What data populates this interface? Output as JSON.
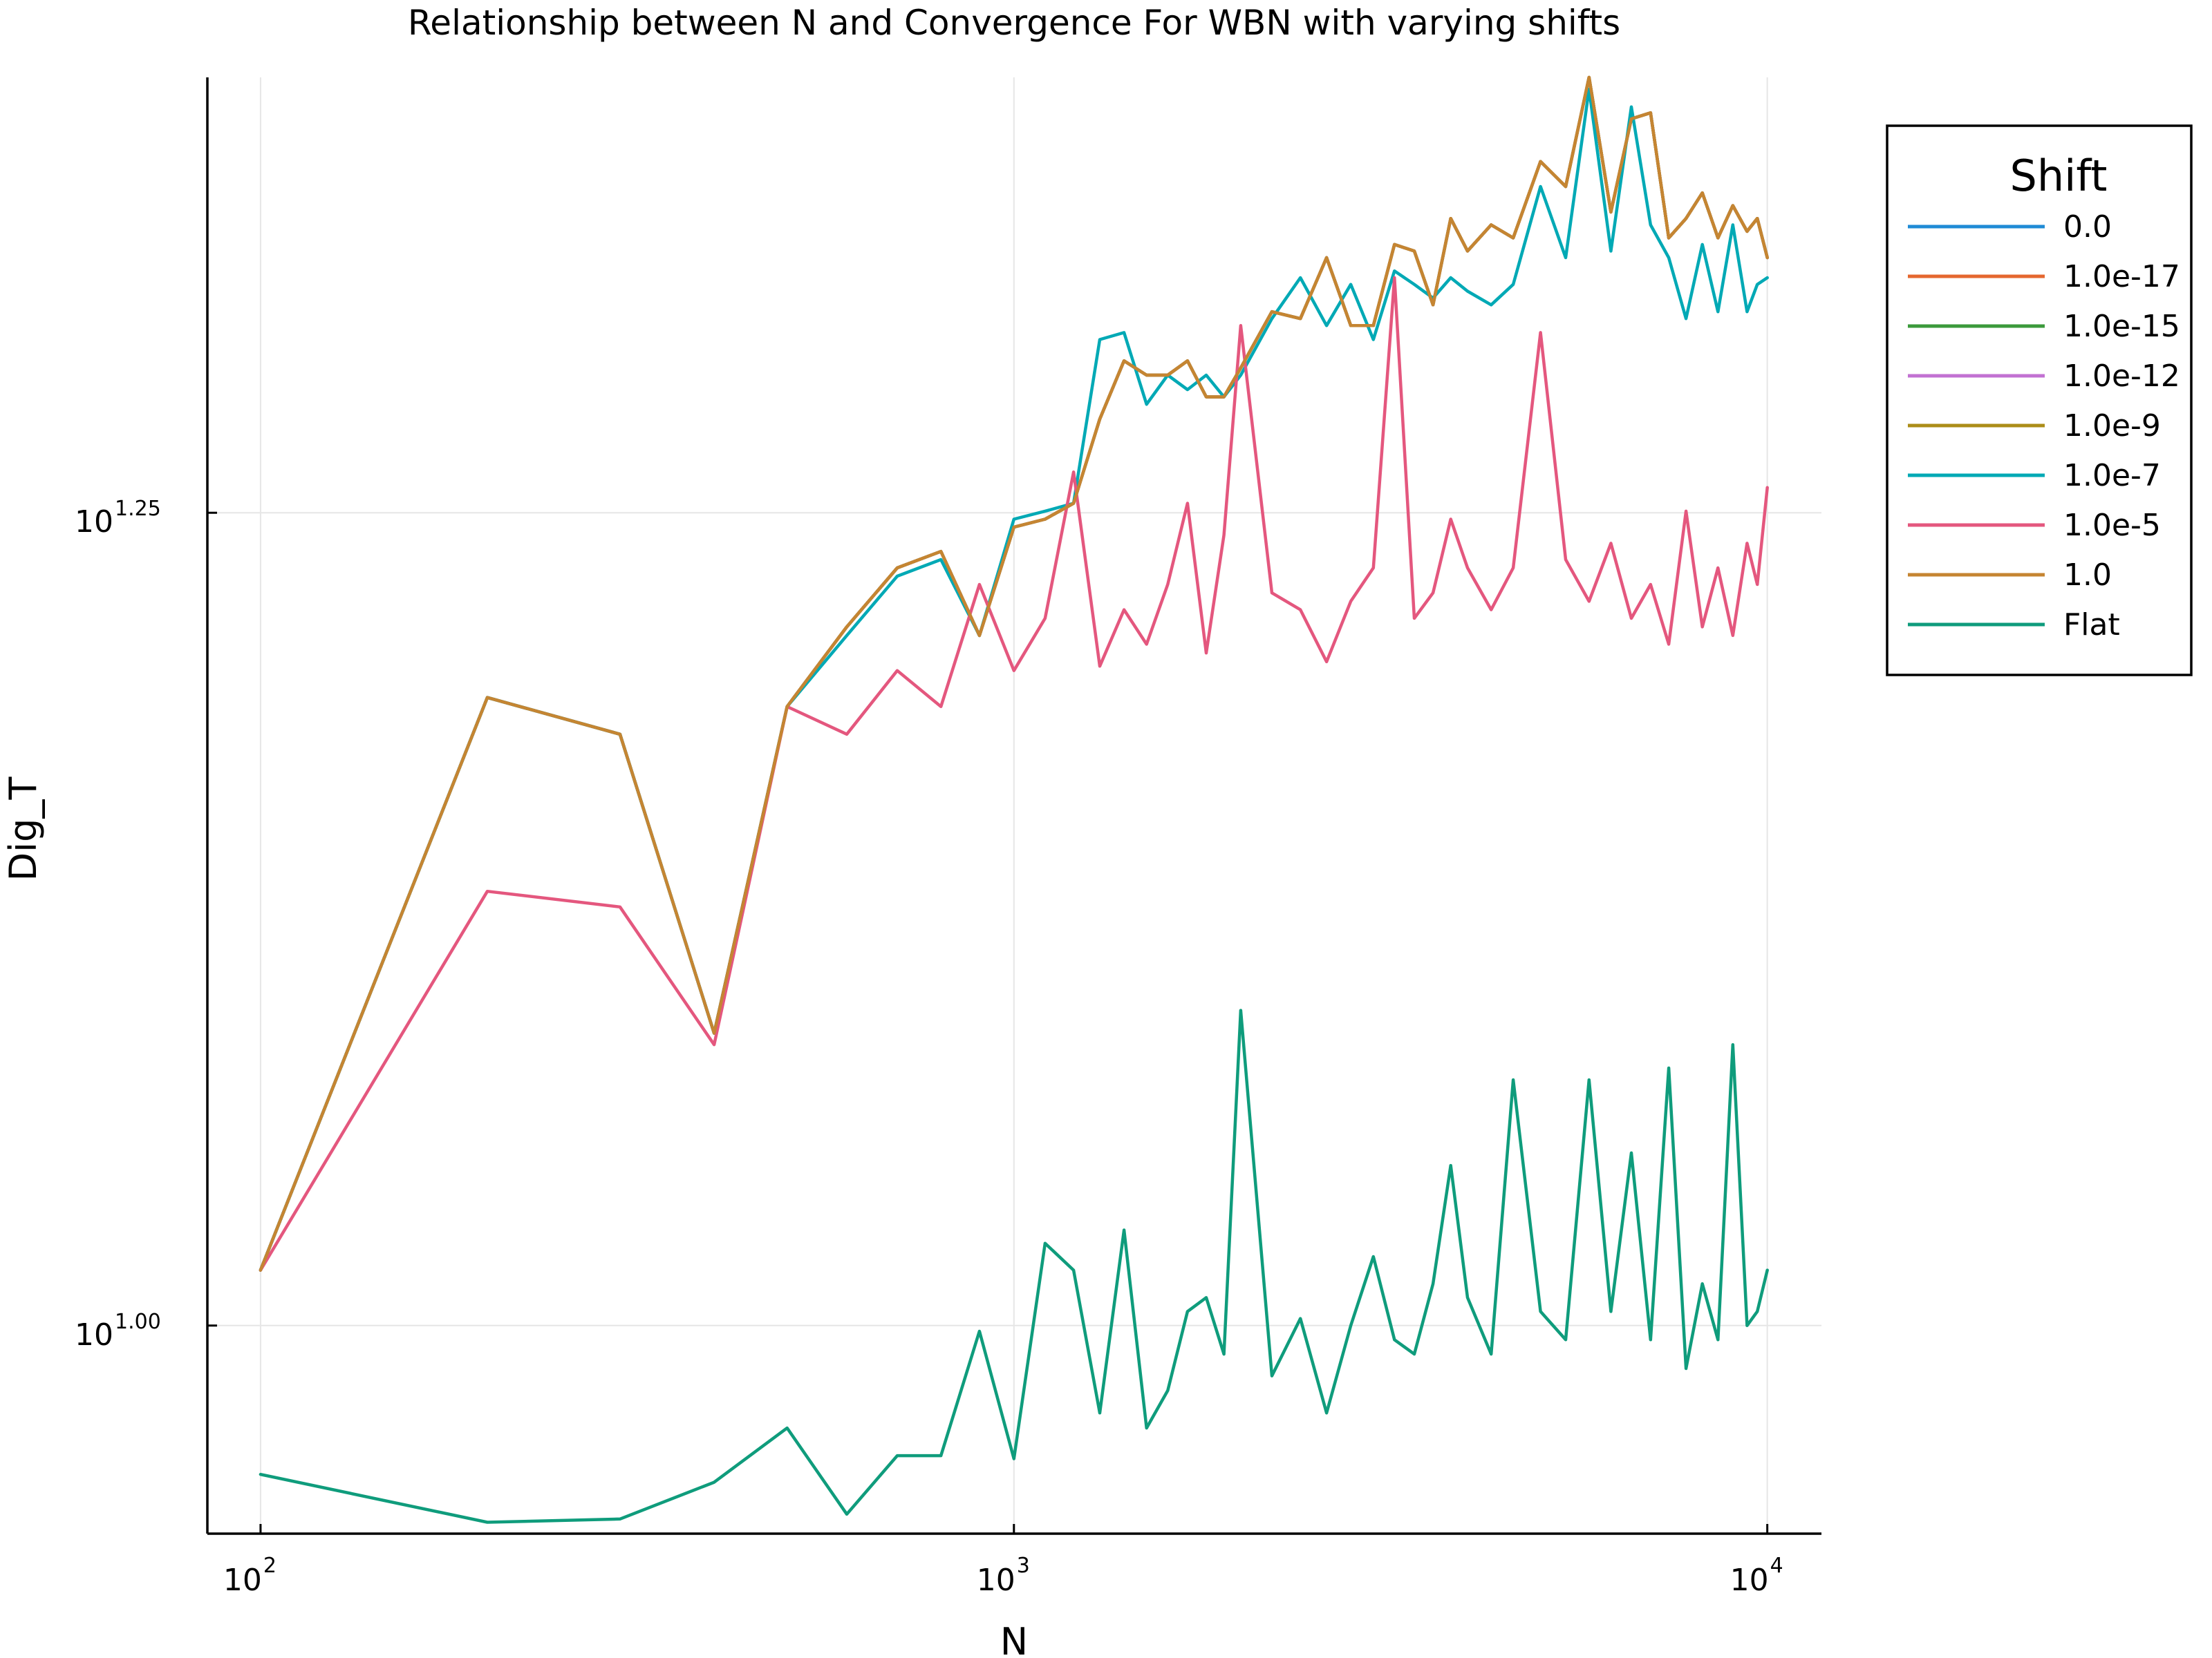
{
  "chart_data": {
    "type": "line",
    "title": "Relationship between N and Convergence For WBN with varying shifts",
    "xlabel": "N",
    "ylabel": "Dig_T",
    "x_scale": "log10",
    "y_scale": "log10",
    "xlim": [
      85,
      11800
    ],
    "ylim": [
      8.63,
      24.2
    ],
    "grid": true,
    "x_ticks": [
      {
        "value": 100,
        "base": "10",
        "exp": "2"
      },
      {
        "value": 1000,
        "base": "10",
        "exp": "3"
      },
      {
        "value": 10000,
        "base": "10",
        "exp": "4"
      }
    ],
    "y_ticks": [
      {
        "value": 10.0,
        "base": "10",
        "exp": "1.00"
      },
      {
        "value": 17.78,
        "base": "10",
        "exp": "1.25"
      }
    ],
    "legend": {
      "title": "Shift",
      "position": "right",
      "placement": "outer-right"
    },
    "x": [
      100,
      200,
      300,
      400,
      500,
      600,
      700,
      800,
      900,
      1000,
      1100,
      1200,
      1300,
      1400,
      1500,
      1600,
      1700,
      1800,
      1900,
      2000,
      2200,
      2400,
      2600,
      2800,
      3000,
      3200,
      3400,
      3600,
      3800,
      4000,
      4300,
      4600,
      5000,
      5400,
      5800,
      6200,
      6600,
      7000,
      7400,
      7800,
      8200,
      8600,
      9000,
      9400,
      9700,
      10000
    ],
    "series": [
      {
        "name": "0.0",
        "color": "#1f8bd6",
        "values": [
          10.4,
          15.6,
          15.2,
          12.3,
          15.5,
          16.4,
          17.1,
          17.3,
          16.3,
          17.6,
          17.7,
          17.9,
          19.0,
          19.8,
          19.6,
          19.6,
          19.8,
          19.3,
          19.3,
          19.7,
          20.5,
          20.4,
          21.3,
          20.3,
          20.3,
          21.5,
          21.4,
          20.6,
          21.9,
          21.4,
          21.8,
          21.6,
          22.8,
          22.4,
          24.2,
          22.0,
          23.5,
          23.6,
          21.6,
          21.9,
          22.3,
          21.6,
          22.1,
          21.7,
          21.9,
          21.3
        ]
      },
      {
        "name": "1.0e-17",
        "color": "#e5672f",
        "values": [
          10.4,
          15.6,
          15.2,
          12.3,
          15.5,
          16.4,
          17.1,
          17.3,
          16.3,
          17.6,
          17.7,
          17.9,
          19.0,
          19.8,
          19.6,
          19.6,
          19.8,
          19.3,
          19.3,
          19.7,
          20.5,
          20.4,
          21.3,
          20.3,
          20.3,
          21.5,
          21.4,
          20.6,
          21.9,
          21.4,
          21.8,
          21.6,
          22.8,
          22.4,
          24.2,
          22.0,
          23.5,
          23.6,
          21.6,
          21.9,
          22.3,
          21.6,
          22.1,
          21.7,
          21.9,
          21.3
        ]
      },
      {
        "name": "1.0e-15",
        "color": "#3b9a3b",
        "values": [
          10.4,
          15.6,
          15.2,
          12.3,
          15.5,
          16.4,
          17.1,
          17.3,
          16.3,
          17.6,
          17.7,
          17.9,
          19.0,
          19.8,
          19.6,
          19.6,
          19.8,
          19.3,
          19.3,
          19.7,
          20.5,
          20.4,
          21.3,
          20.3,
          20.3,
          21.5,
          21.4,
          20.6,
          21.9,
          21.4,
          21.8,
          21.6,
          22.8,
          22.4,
          24.2,
          22.0,
          23.5,
          23.6,
          21.6,
          21.9,
          22.3,
          21.6,
          22.1,
          21.7,
          21.9,
          21.3
        ]
      },
      {
        "name": "1.0e-12",
        "color": "#c271d2",
        "values": [
          10.4,
          15.6,
          15.2,
          12.3,
          15.5,
          16.4,
          17.1,
          17.3,
          16.3,
          17.6,
          17.7,
          17.9,
          19.0,
          19.8,
          19.6,
          19.6,
          19.8,
          19.3,
          19.3,
          19.7,
          20.5,
          20.4,
          21.3,
          20.3,
          20.3,
          21.5,
          21.4,
          20.6,
          21.9,
          21.4,
          21.8,
          21.6,
          22.8,
          22.4,
          24.2,
          22.0,
          23.5,
          23.6,
          21.6,
          21.9,
          22.3,
          21.6,
          22.1,
          21.7,
          21.9,
          21.3
        ]
      },
      {
        "name": "1.0e-9",
        "color": "#ac8d18",
        "values": [
          10.4,
          15.6,
          15.2,
          12.3,
          15.5,
          16.4,
          17.1,
          17.3,
          16.3,
          17.6,
          17.7,
          17.9,
          19.0,
          19.8,
          19.6,
          19.6,
          19.8,
          19.3,
          19.3,
          19.7,
          20.5,
          20.4,
          21.3,
          20.3,
          20.3,
          21.5,
          21.4,
          20.6,
          21.9,
          21.4,
          21.8,
          21.6,
          22.8,
          22.4,
          24.2,
          22.0,
          23.5,
          23.6,
          21.6,
          21.9,
          22.3,
          21.6,
          22.1,
          21.7,
          21.9,
          21.3
        ]
      },
      {
        "name": "1.0e-7",
        "color": "#00a9b5",
        "values": [
          10.4,
          15.6,
          15.2,
          12.3,
          15.5,
          16.3,
          17.0,
          17.2,
          16.3,
          17.7,
          17.8,
          17.9,
          20.1,
          20.2,
          19.2,
          19.6,
          19.4,
          19.6,
          19.3,
          19.6,
          20.4,
          21.0,
          20.3,
          20.9,
          20.1,
          21.1,
          20.9,
          20.7,
          21.0,
          20.8,
          20.6,
          20.9,
          22.4,
          21.3,
          24.0,
          21.4,
          23.7,
          21.8,
          21.3,
          20.4,
          21.5,
          20.5,
          21.8,
          20.5,
          20.9,
          21.0
        ]
      },
      {
        "name": "1.0e-5",
        "color": "#e4577e",
        "values": [
          10.4,
          13.6,
          13.45,
          12.2,
          15.5,
          15.2,
          15.9,
          15.5,
          16.9,
          15.9,
          16.5,
          18.3,
          15.95,
          16.6,
          16.2,
          16.9,
          17.9,
          16.1,
          17.5,
          20.3,
          16.8,
          16.6,
          16.0,
          16.7,
          17.1,
          21.0,
          16.5,
          16.8,
          17.7,
          17.1,
          16.6,
          17.1,
          20.2,
          17.2,
          16.7,
          17.4,
          16.5,
          16.9,
          16.2,
          17.8,
          16.4,
          17.1,
          16.3,
          17.4,
          16.9,
          18.1
        ]
      },
      {
        "name": "1.0",
        "color": "#c58532",
        "values": [
          10.4,
          15.6,
          15.2,
          12.3,
          15.5,
          16.4,
          17.1,
          17.3,
          16.3,
          17.6,
          17.7,
          17.9,
          19.0,
          19.8,
          19.6,
          19.6,
          19.8,
          19.3,
          19.3,
          19.7,
          20.5,
          20.4,
          21.3,
          20.3,
          20.3,
          21.5,
          21.4,
          20.6,
          21.9,
          21.4,
          21.8,
          21.6,
          22.8,
          22.4,
          24.2,
          22.0,
          23.5,
          23.6,
          21.6,
          21.9,
          22.3,
          21.6,
          22.1,
          21.7,
          21.9,
          21.3
        ]
      },
      {
        "name": "Flat",
        "color": "#0f9c7c",
        "values": [
          9.0,
          8.7,
          8.72,
          8.95,
          9.3,
          8.75,
          9.12,
          9.12,
          9.96,
          9.1,
          10.6,
          10.4,
          9.4,
          10.7,
          9.3,
          9.55,
          10.1,
          10.2,
          9.8,
          12.5,
          9.65,
          10.05,
          9.4,
          10.0,
          10.5,
          9.9,
          9.8,
          10.3,
          11.2,
          10.2,
          9.8,
          11.9,
          10.1,
          9.9,
          11.9,
          10.1,
          11.3,
          9.9,
          12.0,
          9.7,
          10.3,
          9.9,
          12.2,
          10.0,
          10.1,
          10.4
        ]
      }
    ]
  }
}
